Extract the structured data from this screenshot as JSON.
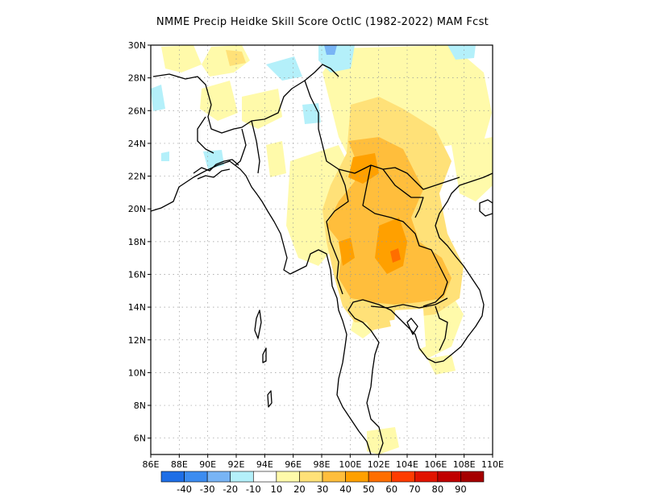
{
  "title": "NMME Precip Heidke Skill Score OctIC (1982-2022) MAM Fcst",
  "map": {
    "lon_range": [
      86,
      110
    ],
    "lat_range": [
      5,
      30
    ],
    "lon_ticks": [
      "86E",
      "88E",
      "90E",
      "92E",
      "94E",
      "96E",
      "98E",
      "100E",
      "102E",
      "104E",
      "106E",
      "108E",
      "110E"
    ],
    "lat_ticks": [
      "30N",
      "28N",
      "26N",
      "24N",
      "22N",
      "20N",
      "18N",
      "16N",
      "14N",
      "12N",
      "10N",
      "8N",
      "6N"
    ],
    "gridlines": true
  },
  "colorbar": {
    "labels": [
      "-40",
      "-30",
      "-20",
      "-10",
      "10",
      "20",
      "30",
      "40",
      "50",
      "60",
      "70",
      "80",
      "90"
    ],
    "colors": [
      "#1e6ee6",
      "#3c8cf0",
      "#78b4f5",
      "#b4f0fa",
      "#ffffff",
      "#fffaaa",
      "#ffe178",
      "#ffbe3c",
      "#ffa000",
      "#ff6e00",
      "#ff3c00",
      "#e11400",
      "#c00000",
      "#a50000"
    ]
  }
}
